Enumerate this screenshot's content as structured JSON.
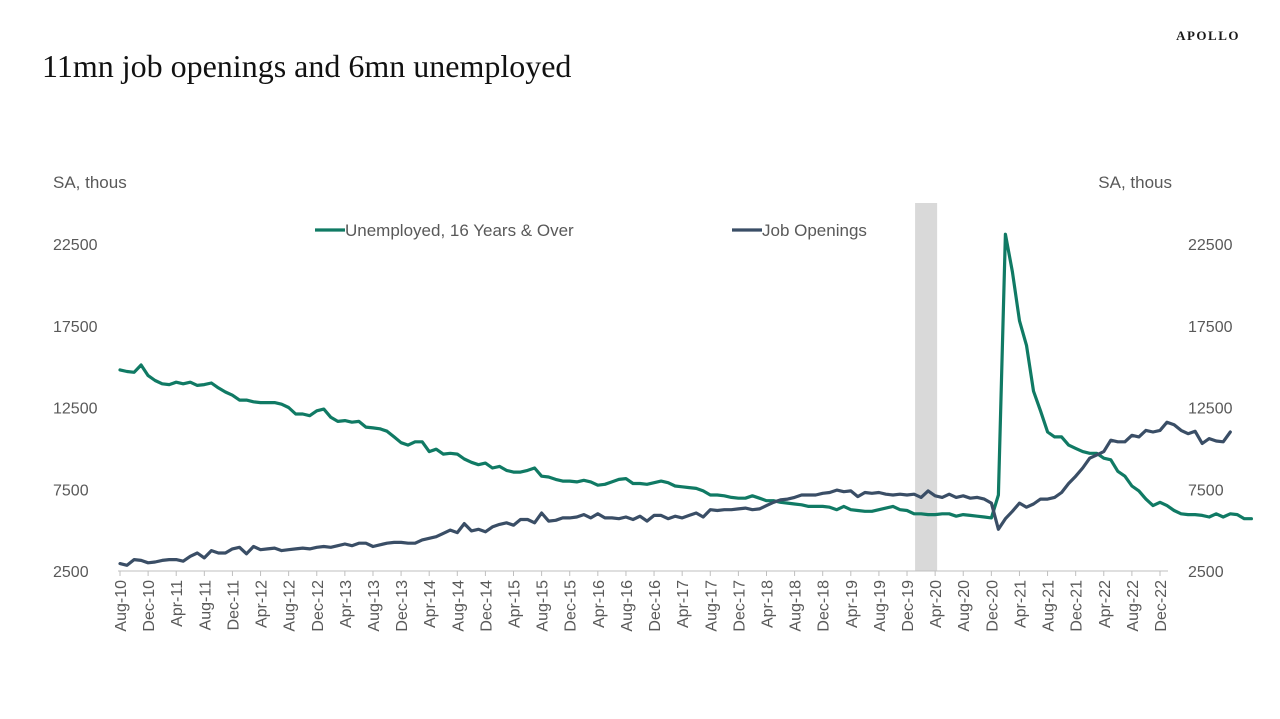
{
  "brand": "APOLLO",
  "title": "11mn job openings and 6mn unemployed",
  "unit_left": "SA, thous",
  "unit_right": "SA, thous",
  "colors": {
    "unemployed": "#107a64",
    "job_openings": "#3a4e66",
    "recession": "#d9d9d9"
  },
  "chart_data": {
    "type": "line",
    "title": "11mn job openings and 6mn unemployed",
    "ylabel": "SA, thous",
    "ylabel_right": "SA, thous",
    "ylim": [
      2500,
      22500
    ],
    "yticks": [
      2500,
      7500,
      12500,
      17500,
      22500
    ],
    "legend": "top-center",
    "grid": false,
    "x_start": "Aug-10",
    "x_end": "Dec-22",
    "x_tick_labels": [
      "Aug-10",
      "Dec-10",
      "Apr-11",
      "Aug-11",
      "Dec-11",
      "Apr-12",
      "Aug-12",
      "Dec-12",
      "Apr-13",
      "Aug-13",
      "Dec-13",
      "Apr-14",
      "Aug-14",
      "Dec-14",
      "Apr-15",
      "Aug-15",
      "Dec-15",
      "Apr-16",
      "Aug-16",
      "Dec-16",
      "Apr-17",
      "Aug-17",
      "Dec-17",
      "Apr-18",
      "Aug-18",
      "Dec-18",
      "Apr-19",
      "Aug-19",
      "Dec-19",
      "Apr-20",
      "Aug-20",
      "Dec-20",
      "Apr-21",
      "Aug-21",
      "Dec-21",
      "Apr-22",
      "Aug-22",
      "Dec-22"
    ],
    "recession_shading": {
      "from": "Feb-20",
      "to": "Apr-20"
    },
    "series": [
      {
        "name": "Unemployed, 16 Years & Over",
        "color": "#107a64",
        "values": [
          14800,
          14700,
          14650,
          15100,
          14450,
          14150,
          13950,
          13900,
          14050,
          13950,
          14050,
          13850,
          13900,
          14000,
          13700,
          13450,
          13250,
          12950,
          12950,
          12850,
          12800,
          12800,
          12800,
          12700,
          12500,
          12100,
          12100,
          12000,
          12300,
          12400,
          11900,
          11650,
          11700,
          11600,
          11650,
          11300,
          11250,
          11200,
          11050,
          10700,
          10350,
          10200,
          10400,
          10400,
          9800,
          9950,
          9650,
          9700,
          9650,
          9350,
          9150,
          9000,
          9100,
          8800,
          8900,
          8650,
          8550,
          8550,
          8650,
          8800,
          8300,
          8250,
          8100,
          8000,
          8000,
          7950,
          8050,
          7950,
          7750,
          7800,
          7950,
          8100,
          8150,
          7850,
          7850,
          7800,
          7900,
          8000,
          7900,
          7700,
          7650,
          7600,
          7550,
          7400,
          7150,
          7150,
          7100,
          7000,
          6950,
          6950,
          7100,
          6950,
          6800,
          6800,
          6700,
          6650,
          6600,
          6550,
          6450,
          6450,
          6450,
          6400,
          6250,
          6450,
          6250,
          6200,
          6150,
          6150,
          6250,
          6350,
          6450,
          6250,
          6200,
          6000,
          6000,
          5950,
          5950,
          6000,
          6000,
          5850,
          5950,
          5900,
          5850,
          5800,
          5750,
          7150,
          23100,
          20800,
          17800,
          16300,
          13500,
          12300,
          11000,
          10700,
          10700,
          10200,
          10000,
          9800,
          9700,
          9700,
          9400,
          9300,
          8600,
          8300,
          7700,
          7400,
          6900,
          6500,
          6700,
          6500,
          6200,
          6000,
          5950,
          5950,
          5900,
          5800,
          6000,
          5800,
          6000,
          5950,
          5700,
          5700
        ],
        "points_approx": true
      },
      {
        "name": "Job Openings",
        "color": "#3a4e66",
        "values": [
          2950,
          2850,
          3200,
          3150,
          3000,
          3050,
          3150,
          3200,
          3200,
          3100,
          3400,
          3600,
          3300,
          3750,
          3600,
          3600,
          3850,
          3950,
          3550,
          4000,
          3800,
          3850,
          3900,
          3750,
          3800,
          3850,
          3900,
          3850,
          3950,
          4000,
          3950,
          4050,
          4150,
          4050,
          4200,
          4200,
          4000,
          4100,
          4200,
          4250,
          4250,
          4200,
          4200,
          4400,
          4500,
          4600,
          4800,
          5000,
          4850,
          5400,
          4950,
          5050,
          4900,
          5200,
          5350,
          5450,
          5300,
          5650,
          5650,
          5450,
          6050,
          5550,
          5600,
          5750,
          5750,
          5800,
          5950,
          5750,
          6000,
          5750,
          5750,
          5700,
          5800,
          5650,
          5850,
          5550,
          5900,
          5900,
          5700,
          5850,
          5750,
          5900,
          6050,
          5800,
          6250,
          6200,
          6250,
          6250,
          6300,
          6350,
          6250,
          6300,
          6500,
          6700,
          6850,
          6900,
          7000,
          7150,
          7150,
          7150,
          7250,
          7300,
          7450,
          7350,
          7400,
          7050,
          7300,
          7250,
          7300,
          7200,
          7150,
          7200,
          7150,
          7200,
          7000,
          7400,
          7100,
          7000,
          7200,
          7000,
          7100,
          6950,
          7000,
          6900,
          6650,
          5050,
          5700,
          6150,
          6650,
          6400,
          6600,
          6900,
          6900,
          7000,
          7300,
          7850,
          8300,
          8800,
          9400,
          9600,
          9800,
          10500,
          10400,
          10400,
          10800,
          10700,
          11100,
          11000,
          11100,
          11600,
          11450,
          11100,
          10900,
          11050,
          10300,
          10600,
          10450,
          10400,
          11000
        ]
      }
    ]
  }
}
